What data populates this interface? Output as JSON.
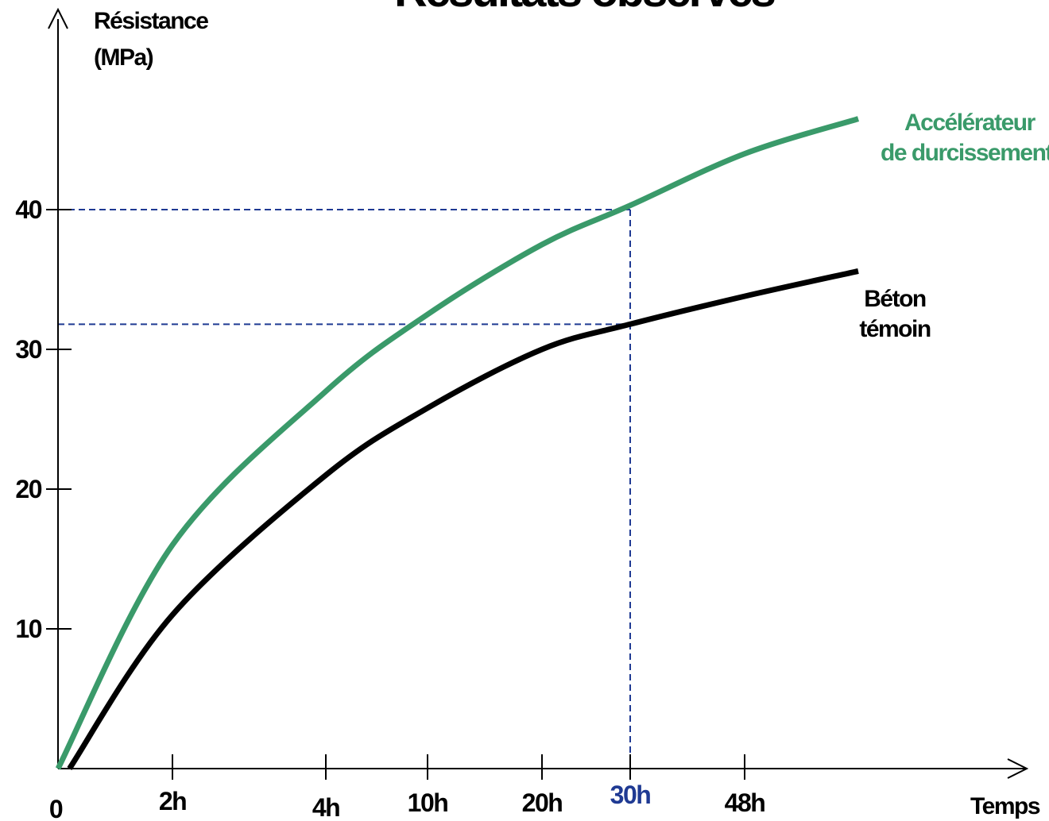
{
  "chart_data": {
    "type": "line",
    "title": "Résultats observés",
    "ylabel_line1": "Résistance",
    "ylabel_line2": "(MPa)",
    "xlabel": "Temps",
    "origin_label": "0",
    "y_ticks": [
      10,
      20,
      30,
      40
    ],
    "ylim": [
      0,
      50
    ],
    "x_ticks": [
      {
        "label": "2h",
        "value": 2
      },
      {
        "label": "4h",
        "value": 4
      },
      {
        "label": "10h",
        "value": 10
      },
      {
        "label": "20h",
        "value": 20
      },
      {
        "label": "30h",
        "value": 30,
        "highlight": true
      },
      {
        "label": "48h",
        "value": 48
      }
    ],
    "x_scale": "non-linear (categorical spacing)",
    "grid": false,
    "series": [
      {
        "name_line1": "Accélérateur",
        "name_line2": "de durcissement",
        "color": "#3a9a6a",
        "points": [
          [
            0,
            0
          ],
          [
            2,
            16
          ],
          [
            4,
            27
          ],
          [
            10,
            32.5
          ],
          [
            20,
            37.5
          ],
          [
            30,
            40.3
          ],
          [
            48,
            44
          ],
          [
            72,
            46.5
          ]
        ]
      },
      {
        "name_line1": "Béton",
        "name_line2": "témoin",
        "color": "#000000",
        "points": [
          [
            0.2,
            0
          ],
          [
            2,
            11
          ],
          [
            4,
            21
          ],
          [
            10,
            25.8
          ],
          [
            20,
            30
          ],
          [
            30,
            31.8
          ],
          [
            48,
            33.8
          ],
          [
            72,
            35.6
          ]
        ]
      }
    ],
    "reference_lines": [
      {
        "x": 30,
        "y": 40,
        "color": "#1f3a93"
      },
      {
        "x": 30,
        "y": 31.8,
        "color": "#1f3a93"
      }
    ],
    "highlight_color": "#1f3a93"
  }
}
